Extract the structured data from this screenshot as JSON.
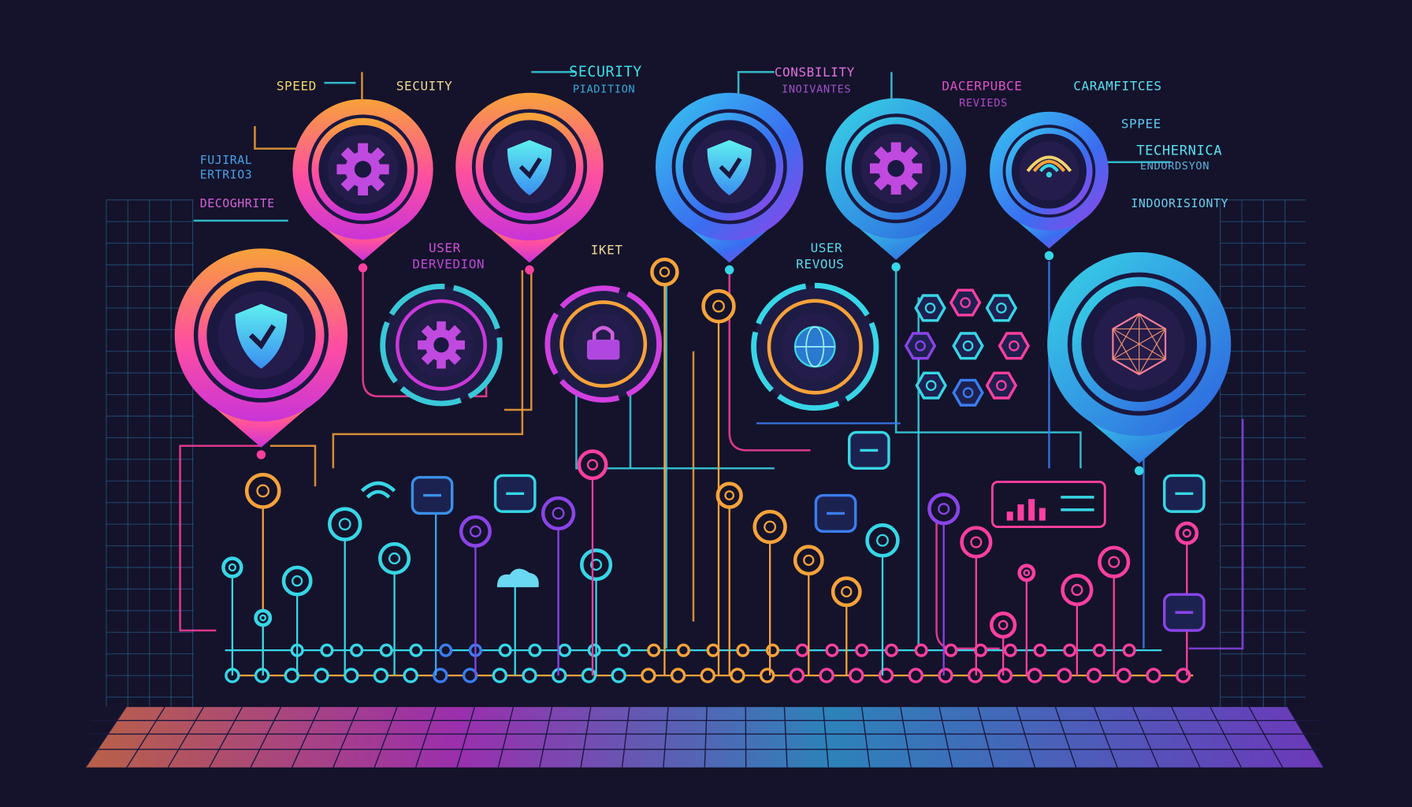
{
  "colors": {
    "background": "#14132b",
    "orange": "#f7a23a",
    "magenta": "#d43ad8",
    "pink": "#ff3fa0",
    "cyan": "#37d6e6",
    "blue": "#3a7df0",
    "purple": "#8a44e8",
    "yellow": "#f2d56a"
  },
  "labels": {
    "speed": "SPEED",
    "secuity": "SECUITY",
    "fujiral_1": "FUJIRAL",
    "fujiral_2": "ERTRIO3",
    "decoghrite": "DECOGHRITE",
    "security_1": "SECURITY",
    "security_2": "PIADITION",
    "consbility_1": "CONSBILITY",
    "consbility_2": "INOIVANTES",
    "dacerpubce_1": "DACERPUBCE",
    "dacerpubce_2": "REVIEDS",
    "caramfitces": "CARAMFITCES",
    "sppee": "SPPEE",
    "techernica_1": "TECHERNICA",
    "techernica_2": "ENDORDSYON",
    "indoorisionty": "INDOORISIONTY",
    "user_dervedion_1": "USER",
    "user_dervedion_2": "DERVEDION",
    "iket": "IKET",
    "user_revous_1": "USER",
    "user_revous_2": "REVOUS"
  },
  "pins": [
    {
      "icon": "gear-icon",
      "theme": "warm"
    },
    {
      "icon": "shield-check-icon",
      "theme": "warm"
    },
    {
      "icon": "shield-check-icon",
      "theme": "cool-purple"
    },
    {
      "icon": "gear-icon",
      "theme": "cool"
    },
    {
      "icon": "wifi-icon",
      "theme": "cool-purple"
    },
    {
      "icon": "shield-check-icon",
      "theme": "warm"
    },
    {
      "icon": "network-icon",
      "theme": "cool"
    }
  ],
  "medallions": [
    {
      "icon": "gear-icon"
    },
    {
      "icon": "lock-icon"
    },
    {
      "icon": "globe-icon"
    }
  ]
}
